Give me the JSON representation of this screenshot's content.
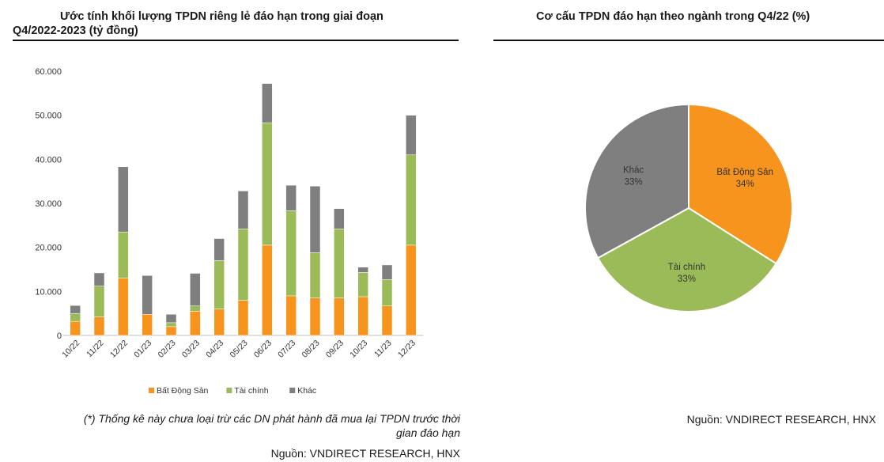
{
  "left": {
    "title_line1": "Ước tính khối lượng TPDN riêng lẻ đáo hạn trong giai đoạn",
    "title_line2": "Q4/2022-2023 (tỷ đồng)",
    "note_line1": "(*) Thống kê này chưa loại trừ các DN phát hành đã mua lại TPDN trước thời",
    "note_line2": "gian đáo hạn",
    "source": "Nguồn: VNDIRECT RESEARCH, HNX"
  },
  "right": {
    "title": "Cơ cấu TPDN đáo hạn theo ngành trong Q4/22 (%)",
    "source": "Nguồn: VNDIRECT RESEARCH, HNX"
  },
  "chart_data": [
    {
      "type": "bar",
      "stacked": true,
      "categories": [
        "10/22",
        "11/22",
        "12/22",
        "01/23",
        "02/23",
        "03/23",
        "04/23",
        "05/23",
        "06/23",
        "07/23",
        "08/23",
        "09/23",
        "10/23",
        "11/23",
        "12/23"
      ],
      "series": [
        {
          "name": "Bất Động Sản",
          "color": "#F7941D",
          "values": [
            3200,
            4200,
            13000,
            4800,
            2000,
            5500,
            6000,
            8000,
            20500,
            9000,
            8500,
            8500,
            8800,
            6700,
            20500
          ]
        },
        {
          "name": "Tài chính",
          "color": "#9BBB59",
          "values": [
            1800,
            7000,
            10500,
            0,
            900,
            1200,
            11000,
            16200,
            27800,
            19300,
            10300,
            15700,
            5500,
            6000,
            20500
          ]
        },
        {
          "name": "Khác",
          "color": "#7F7F7F",
          "values": [
            1800,
            3000,
            14800,
            8800,
            1900,
            7400,
            5000,
            8600,
            8900,
            5800,
            15100,
            4600,
            1200,
            3300,
            9000
          ]
        }
      ],
      "yticks": [
        "0",
        "10.000",
        "20.000",
        "30.000",
        "40.000",
        "50.000",
        "60.000"
      ],
      "ylim": [
        0,
        60000
      ],
      "legend": "bottom",
      "xlabel": "",
      "ylabel": ""
    },
    {
      "type": "pie",
      "slices": [
        {
          "label": "Bất Động Sản",
          "pct_label": "34%",
          "value": 34,
          "color": "#F7941D"
        },
        {
          "label": "Tài chính",
          "pct_label": "33%",
          "value": 33,
          "color": "#9BBB59"
        },
        {
          "label": "Khác",
          "pct_label": "33%",
          "value": 33,
          "color": "#7F7F7F"
        }
      ]
    }
  ]
}
